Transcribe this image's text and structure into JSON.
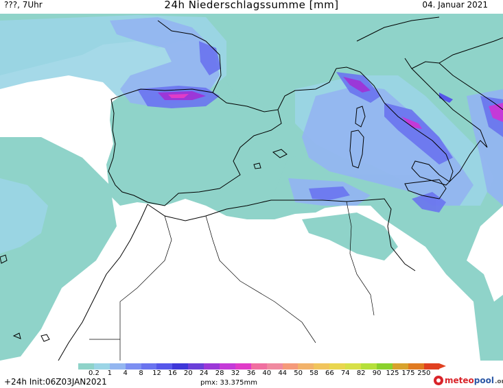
{
  "header": {
    "time_label": "???, 7Uhr",
    "title": "24h Niederschlagssumme [mm]",
    "date": "04. Januar 2021"
  },
  "legend": {
    "ticks": [
      "0.2",
      "1",
      "4",
      "8",
      "12",
      "16",
      "20",
      "24",
      "28",
      "32",
      "36",
      "40",
      "44",
      "50",
      "58",
      "66",
      "74",
      "82",
      "90",
      "125",
      "175",
      "250"
    ],
    "colors": [
      "#8fd3c9",
      "#9bd5e6",
      "#93b6f0",
      "#7c8ff2",
      "#6a74ef",
      "#5657ea",
      "#3e37d9",
      "#6a3fd9",
      "#9b38d8",
      "#c43ad8",
      "#e03cc8",
      "#f06fa0",
      "#f08aa0",
      "#f59a7a",
      "#f2b26a",
      "#f1c45c",
      "#e9d64e",
      "#d7e047",
      "#b5e03a",
      "#8ad12c",
      "#d8a22c",
      "#e07a20",
      "#e04020"
    ]
  },
  "footer": {
    "forecast": "+24h",
    "init": "Init:06Z03JAN2021",
    "pmx": "pmx: 33.375mm",
    "logo_main_red": "meteo",
    "logo_main_blue": "pool",
    "logo_tld": ".org"
  }
}
